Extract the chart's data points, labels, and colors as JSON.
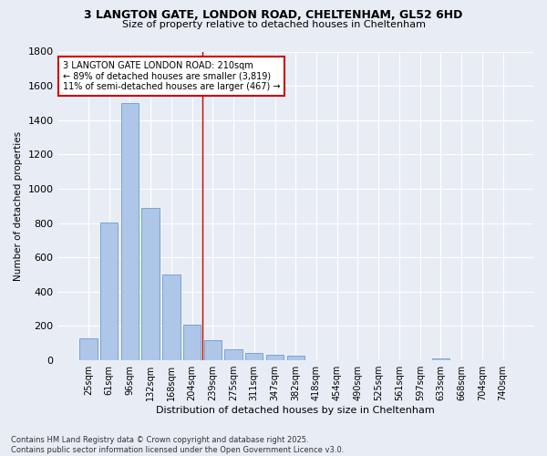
{
  "title_line1": "3 LANGTON GATE, LONDON ROAD, CHELTENHAM, GL52 6HD",
  "title_line2": "Size of property relative to detached houses in Cheltenham",
  "xlabel": "Distribution of detached houses by size in Cheltenham",
  "ylabel": "Number of detached properties",
  "categories": [
    "25sqm",
    "61sqm",
    "96sqm",
    "132sqm",
    "168sqm",
    "204sqm",
    "239sqm",
    "275sqm",
    "311sqm",
    "347sqm",
    "382sqm",
    "418sqm",
    "454sqm",
    "490sqm",
    "525sqm",
    "561sqm",
    "597sqm",
    "633sqm",
    "668sqm",
    "704sqm",
    "740sqm"
  ],
  "values": [
    130,
    805,
    1500,
    890,
    500,
    210,
    115,
    65,
    45,
    32,
    28,
    0,
    0,
    0,
    0,
    0,
    0,
    10,
    0,
    0,
    0
  ],
  "bar_color": "#aec6e8",
  "bar_edge_color": "#5a8fc2",
  "vline_color": "#cc0000",
  "annotation_text": "3 LANGTON GATE LONDON ROAD: 210sqm\n← 89% of detached houses are smaller (3,819)\n11% of semi-detached houses are larger (467) →",
  "annotation_box_color": "#ffffff",
  "annotation_border_color": "#cc0000",
  "ylim": [
    0,
    1800
  ],
  "yticks": [
    0,
    200,
    400,
    600,
    800,
    1000,
    1200,
    1400,
    1600,
    1800
  ],
  "background_color": "#e8edf5",
  "grid_color": "#ffffff",
  "footnote": "Contains HM Land Registry data © Crown copyright and database right 2025.\nContains public sector information licensed under the Open Government Licence v3.0.",
  "figsize": [
    6.0,
    5.0
  ],
  "dpi": 100
}
